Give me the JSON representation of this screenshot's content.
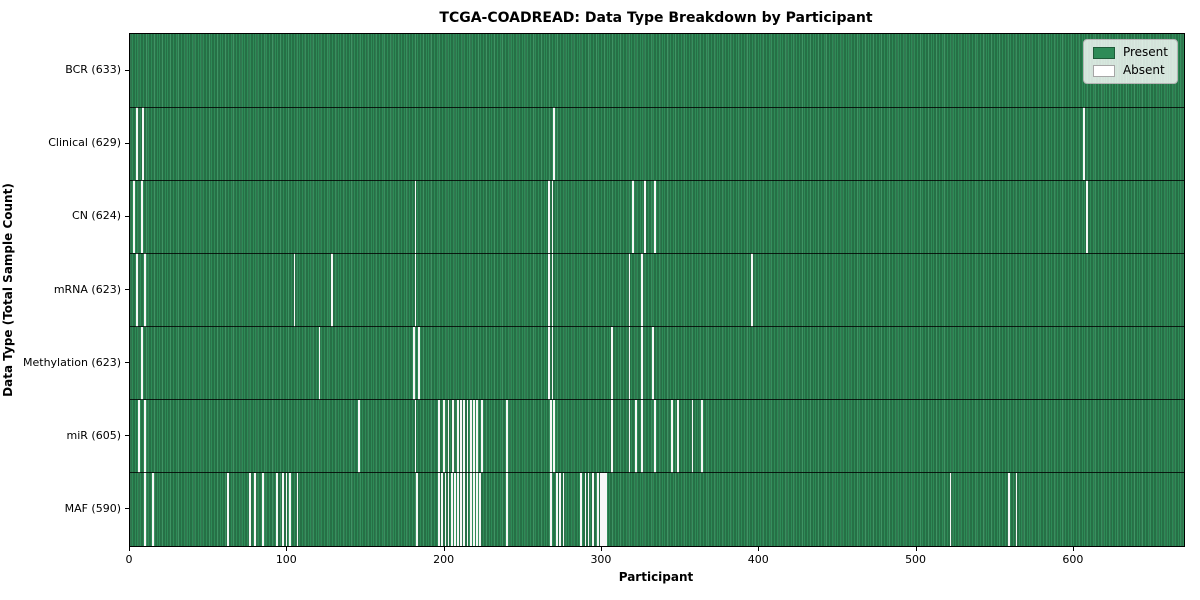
{
  "chart_data": {
    "type": "heatmap",
    "title": "TCGA-COADREAD: Data Type Breakdown by Participant",
    "xlabel": "Participant",
    "ylabel": "Data Type (Total Sample Count)",
    "n_participants": 633,
    "xlim": [
      0,
      670
    ],
    "x_ticks": [
      0,
      100,
      200,
      300,
      400,
      500,
      600
    ],
    "grid": false,
    "legend": {
      "position": "upper-right",
      "entries": [
        {
          "label": "Present",
          "color": "#2e8b57"
        },
        {
          "label": "Absent",
          "color": "#ffffff"
        }
      ]
    },
    "colors": {
      "present": "#2e8b57",
      "absent": "#ffffff",
      "bar_edge": "#1a4d30",
      "row_separator": "#000000"
    },
    "rows": [
      {
        "name": "BCR",
        "label": "BCR (633)",
        "present_count": 633,
        "absent_participants": []
      },
      {
        "name": "Clinical",
        "label": "Clinical (629)",
        "present_count": 629,
        "absent_participants": [
          4,
          8,
          269,
          606
        ]
      },
      {
        "name": "CN",
        "label": "CN (624)",
        "present_count": 624,
        "absent_participants": [
          2,
          7,
          181,
          266,
          268,
          319,
          327,
          333,
          608
        ]
      },
      {
        "name": "mRNA",
        "label": "mRNA (623)",
        "present_count": 623,
        "absent_participants": [
          4,
          9,
          104,
          128,
          181,
          266,
          268,
          317,
          325,
          395
        ]
      },
      {
        "name": "Methylation",
        "label": "Methylation (623)",
        "present_count": 623,
        "absent_participants": [
          7,
          120,
          180,
          183,
          266,
          268,
          306,
          317,
          325,
          332
        ]
      },
      {
        "name": "miR",
        "label": "miR (605)",
        "present_count": 605,
        "absent_participants": [
          5,
          9,
          145,
          181,
          196,
          199,
          202,
          205,
          208,
          210,
          212,
          214,
          216,
          218,
          220,
          223,
          239,
          267,
          269,
          306,
          317,
          321,
          325,
          333,
          344,
          348,
          357,
          363
        ]
      },
      {
        "name": "MAF",
        "label": "MAF (590)",
        "present_count": 590,
        "absent_participants": [
          9,
          14,
          62,
          76,
          79,
          84,
          93,
          97,
          99,
          101,
          106,
          182,
          196,
          198,
          200,
          202,
          204,
          206,
          208,
          210,
          212,
          214,
          216,
          218,
          220,
          222,
          239,
          267,
          271,
          273,
          275,
          286,
          289,
          291,
          294,
          297,
          299,
          300,
          301,
          302,
          521,
          558,
          563
        ]
      }
    ]
  }
}
